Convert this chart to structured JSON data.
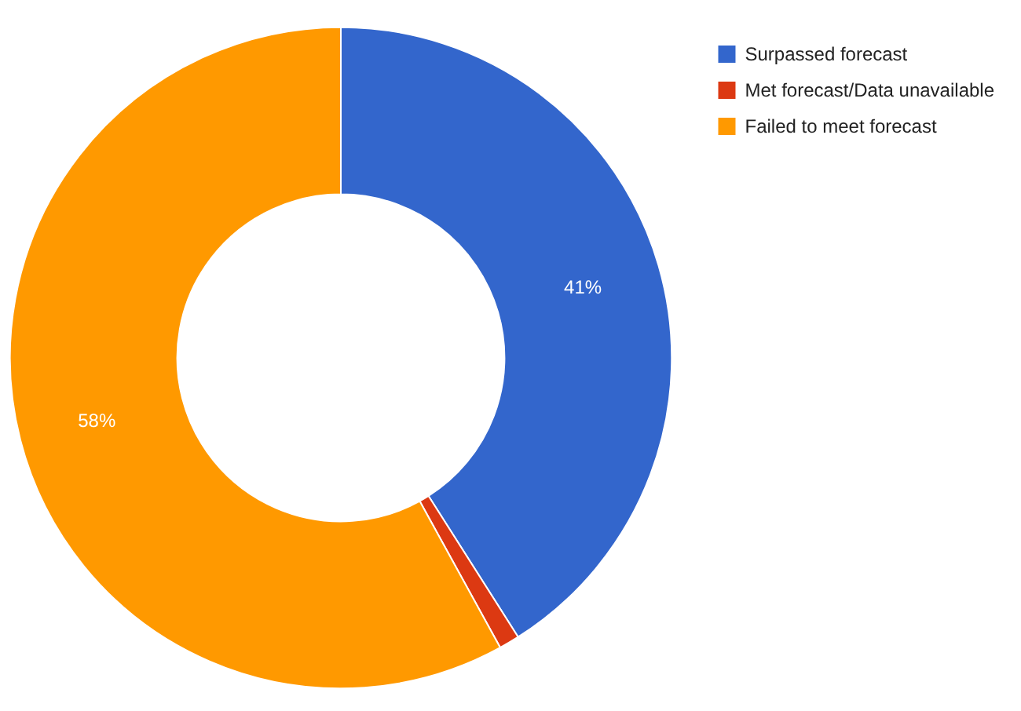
{
  "chart_data": {
    "type": "donut",
    "categories": [
      "Surpassed forecast",
      "Met forecast/Data unavailable",
      "Failed to meet forecast"
    ],
    "values": [
      41,
      1,
      58
    ],
    "colors": [
      "#3366cc",
      "#dc3912",
      "#ff9900"
    ],
    "value_labels": [
      "41%",
      null,
      "58%"
    ],
    "legend": "top right"
  }
}
